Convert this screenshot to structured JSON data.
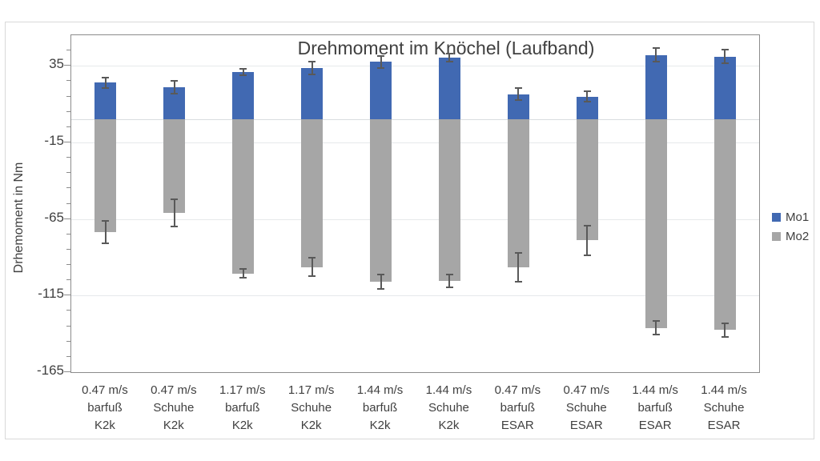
{
  "chart_data": {
    "type": "bar",
    "stacked": true,
    "title": "Drehmoment im Knöchel (Laufband)",
    "ylabel": "Drhemoment in Nm",
    "xlabel": "",
    "ylim": [
      -165,
      55
    ],
    "yticks": [
      35,
      -15,
      -65,
      -115,
      -165
    ],
    "minor_tick_unit": 10,
    "grid": true,
    "legend_position": "right",
    "categories": [
      [
        "0.47 m/s",
        "barfuß",
        "K2k"
      ],
      [
        "0.47 m/s",
        "Schuhe",
        "K2k"
      ],
      [
        "1.17 m/s",
        "barfuß",
        "K2k"
      ],
      [
        "1.17 m/s",
        "Schuhe",
        "K2k"
      ],
      [
        "1.44 m/s",
        "barfuß",
        "K2k"
      ],
      [
        "1.44 m/s",
        "Schuhe",
        "K2k"
      ],
      [
        "0.47 m/s",
        "barfuß",
        "ESAR"
      ],
      [
        "0.47 m/s",
        "Schuhe",
        "ESAR"
      ],
      [
        "1.44 m/s",
        "barfuß",
        "ESAR"
      ],
      [
        "1.44 m/s",
        "Schuhe",
        "ESAR"
      ]
    ],
    "series": [
      {
        "name": "Mo1",
        "color": "#4169b2",
        "values": [
          24,
          21,
          31,
          33.5,
          37.5,
          40.5,
          16.5,
          15,
          42,
          41
        ],
        "errors": [
          3.5,
          4,
          2,
          4,
          4,
          2.5,
          4,
          3.5,
          4.5,
          4.5
        ]
      },
      {
        "name": "Mo2",
        "color": "#a6a6a6",
        "values": [
          -73.5,
          -61,
          -100.5,
          -96.5,
          -106,
          -105.5,
          -96.5,
          -79,
          -136,
          -137.5
        ],
        "errors": [
          7.5,
          9,
          3,
          6,
          4.5,
          4,
          9.5,
          9.5,
          4.5,
          4.5
        ]
      }
    ],
    "error_bar_color": "#595959",
    "axis_color": "#8c8c8c",
    "gridline_color": "#e6e9eb",
    "text_color": "#404040"
  }
}
